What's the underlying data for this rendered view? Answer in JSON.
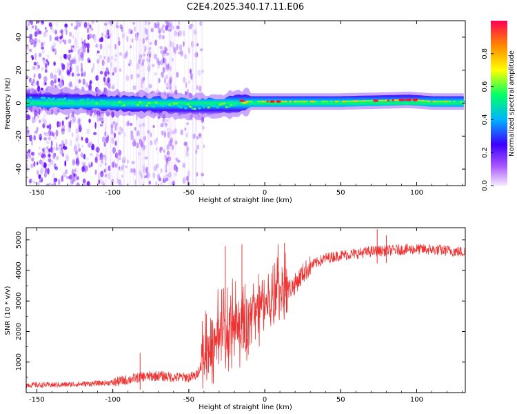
{
  "title": "C2E4.2025.340.17.11.E06",
  "chart_data": [
    {
      "type": "heatmap",
      "xlabel": "Height of straight line (km)",
      "ylabel": "Frequency (Hz)",
      "xlim": [
        -157,
        132
      ],
      "ylim": [
        -50,
        50
      ],
      "xticks": [
        -150,
        -100,
        -50,
        0,
        50,
        100
      ],
      "yticks": [
        -40,
        -20,
        0,
        20,
        40
      ],
      "colorbar": {
        "label": "Normalized spectral amplitude",
        "range": [
          0,
          1
        ],
        "ticks": [
          "0.0",
          "0.2",
          "0.4",
          "0.6",
          "0.8"
        ],
        "colors": [
          "#f5e9ff",
          "#a855ff",
          "#3b00ff",
          "#00b4ff",
          "#00ff66",
          "#ffff00",
          "#ff8800",
          "#ff0055"
        ]
      },
      "ridge": [
        {
          "x": -157,
          "f": 2,
          "a": 0.35
        },
        {
          "x": -120,
          "f": 1,
          "a": 0.45
        },
        {
          "x": -100,
          "f": 0,
          "a": 0.5
        },
        {
          "x": -70,
          "f": -1,
          "a": 0.5
        },
        {
          "x": -50,
          "f": -2,
          "a": 0.55
        },
        {
          "x": -30,
          "f": -2,
          "a": 0.55
        },
        {
          "x": -10,
          "f": 1,
          "a": 0.6
        },
        {
          "x": 0,
          "f": 1,
          "a": 0.7
        },
        {
          "x": 20,
          "f": 1,
          "a": 0.65
        },
        {
          "x": 50,
          "f": 1,
          "a": 0.6
        },
        {
          "x": 75,
          "f": 1.5,
          "a": 0.7
        },
        {
          "x": 95,
          "f": 2,
          "a": 0.85
        },
        {
          "x": 110,
          "f": 1,
          "a": 0.6
        },
        {
          "x": 132,
          "f": 1,
          "a": 0.6
        }
      ],
      "noise_region_km": [
        -157,
        -40
      ]
    },
    {
      "type": "line",
      "xlabel": "Height of straight line (km)",
      "ylabel": "SNR (10 * v/v)",
      "xlim": [
        -157,
        132
      ],
      "ylim": [
        0,
        5400
      ],
      "xticks": [
        -150,
        -100,
        -50,
        0,
        50,
        100
      ],
      "yticks": [
        1000,
        2000,
        3000,
        4000,
        5000
      ],
      "color": "#ee3333",
      "envelope": {
        "x": [
          -157,
          -140,
          -120,
          -100,
          -90,
          -80,
          -70,
          -60,
          -50,
          -45,
          -42,
          -40,
          -35,
          -30,
          -25,
          -20,
          -15,
          -10,
          -5,
          0,
          5,
          10,
          15,
          20,
          25,
          30,
          40,
          50,
          60,
          70,
          80,
          90,
          100,
          110,
          120,
          132
        ],
        "y": [
          250,
          250,
          280,
          330,
          420,
          520,
          550,
          500,
          500,
          550,
          900,
          1300,
          1500,
          1750,
          1950,
          2100,
          2150,
          2300,
          2600,
          2900,
          3100,
          3200,
          3350,
          3550,
          3900,
          4150,
          4400,
          4500,
          4550,
          4620,
          4650,
          4680,
          4700,
          4680,
          4650,
          4600
        ]
      },
      "spikes": [
        {
          "x": -26,
          "y": 4800
        },
        {
          "x": -15,
          "y": 4850
        },
        {
          "x": 13,
          "y": 4900
        },
        {
          "x": 74,
          "y": 5350
        },
        {
          "x": 80,
          "y": 5150
        },
        {
          "x": -82,
          "y": 1300
        }
      ]
    }
  ]
}
